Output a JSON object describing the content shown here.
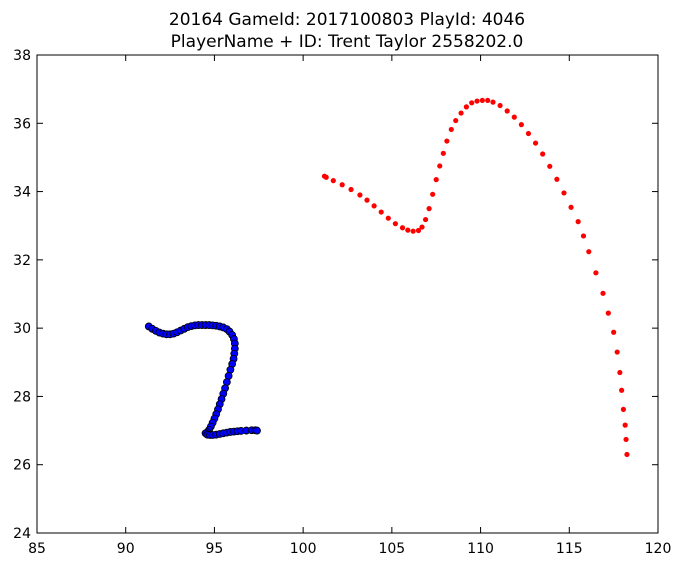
{
  "chart_data": {
    "type": "scatter",
    "title_line1": "20164 GameId: 2017100803 PlayId: 4046",
    "title_line2": "PlayerName + ID: Trent Taylor 2558202.0",
    "xlabel": "",
    "ylabel": "",
    "xlim": [
      85,
      120
    ],
    "ylim": [
      24,
      38
    ],
    "x_ticks": [
      85,
      90,
      95,
      100,
      105,
      110,
      115,
      120
    ],
    "y_ticks": [
      24,
      26,
      28,
      30,
      32,
      34,
      36,
      38
    ],
    "grid": false,
    "series": [
      {
        "color": "#0000ff",
        "marker": "circle-outlined",
        "points": [
          [
            91.3,
            30.05
          ],
          [
            91.5,
            29.98
          ],
          [
            91.7,
            29.92
          ],
          [
            91.9,
            29.87
          ],
          [
            92.1,
            29.84
          ],
          [
            92.3,
            29.82
          ],
          [
            92.5,
            29.82
          ],
          [
            92.7,
            29.84
          ],
          [
            92.9,
            29.88
          ],
          [
            93.1,
            29.93
          ],
          [
            93.3,
            29.98
          ],
          [
            93.5,
            30.03
          ],
          [
            93.7,
            30.06
          ],
          [
            93.9,
            30.08
          ],
          [
            94.1,
            30.09
          ],
          [
            94.3,
            30.09
          ],
          [
            94.5,
            30.09
          ],
          [
            94.7,
            30.09
          ],
          [
            94.9,
            30.08
          ],
          [
            95.1,
            30.07
          ],
          [
            95.3,
            30.05
          ],
          [
            95.5,
            30.02
          ],
          [
            95.7,
            29.97
          ],
          [
            95.85,
            29.9
          ],
          [
            96.0,
            29.8
          ],
          [
            96.1,
            29.68
          ],
          [
            96.15,
            29.55
          ],
          [
            96.15,
            29.4
          ],
          [
            96.12,
            29.25
          ],
          [
            96.08,
            29.1
          ],
          [
            96.0,
            28.95
          ],
          [
            95.9,
            28.78
          ],
          [
            95.8,
            28.6
          ],
          [
            95.7,
            28.42
          ],
          [
            95.6,
            28.24
          ],
          [
            95.5,
            28.08
          ],
          [
            95.4,
            27.92
          ],
          [
            95.3,
            27.77
          ],
          [
            95.2,
            27.62
          ],
          [
            95.1,
            27.48
          ],
          [
            95.0,
            27.35
          ],
          [
            94.9,
            27.23
          ],
          [
            94.8,
            27.12
          ],
          [
            94.7,
            27.02
          ],
          [
            94.6,
            26.95
          ],
          [
            94.5,
            26.92
          ],
          [
            94.6,
            26.88
          ],
          [
            94.75,
            26.87
          ],
          [
            94.9,
            26.87
          ],
          [
            95.1,
            26.88
          ],
          [
            95.3,
            26.9
          ],
          [
            95.5,
            26.92
          ],
          [
            95.7,
            26.94
          ],
          [
            95.9,
            26.96
          ],
          [
            96.1,
            26.97
          ],
          [
            96.3,
            26.98
          ],
          [
            96.5,
            26.99
          ],
          [
            96.8,
            27.0
          ],
          [
            97.1,
            27.01
          ],
          [
            97.3,
            27.01
          ],
          [
            97.4,
            27.0
          ]
        ]
      },
      {
        "color": "#ff0000",
        "marker": "dot",
        "points": [
          [
            101.2,
            34.45
          ],
          [
            101.3,
            34.42
          ],
          [
            101.7,
            34.32
          ],
          [
            102.2,
            34.2
          ],
          [
            102.7,
            34.06
          ],
          [
            103.2,
            33.9
          ],
          [
            103.6,
            33.75
          ],
          [
            104.0,
            33.58
          ],
          [
            104.4,
            33.4
          ],
          [
            104.8,
            33.22
          ],
          [
            105.2,
            33.06
          ],
          [
            105.6,
            32.94
          ],
          [
            105.9,
            32.87
          ],
          [
            106.2,
            32.84
          ],
          [
            106.5,
            32.86
          ],
          [
            106.7,
            32.96
          ],
          [
            106.9,
            33.18
          ],
          [
            107.1,
            33.5
          ],
          [
            107.3,
            33.92
          ],
          [
            107.5,
            34.35
          ],
          [
            107.7,
            34.75
          ],
          [
            107.9,
            35.12
          ],
          [
            108.1,
            35.48
          ],
          [
            108.35,
            35.82
          ],
          [
            108.6,
            36.08
          ],
          [
            108.9,
            36.3
          ],
          [
            109.2,
            36.48
          ],
          [
            109.5,
            36.6
          ],
          [
            109.8,
            36.65
          ],
          [
            110.1,
            36.67
          ],
          [
            110.4,
            36.67
          ],
          [
            110.7,
            36.62
          ],
          [
            111.1,
            36.52
          ],
          [
            111.5,
            36.36
          ],
          [
            111.9,
            36.18
          ],
          [
            112.3,
            35.96
          ],
          [
            112.7,
            35.7
          ],
          [
            113.1,
            35.42
          ],
          [
            113.5,
            35.1
          ],
          [
            113.9,
            34.74
          ],
          [
            114.3,
            34.36
          ],
          [
            114.7,
            33.96
          ],
          [
            115.1,
            33.54
          ],
          [
            115.5,
            33.12
          ],
          [
            115.8,
            32.7
          ],
          [
            116.1,
            32.24
          ],
          [
            116.5,
            31.62
          ],
          [
            116.9,
            31.02
          ],
          [
            117.2,
            30.44
          ],
          [
            117.5,
            29.88
          ],
          [
            117.7,
            29.3
          ],
          [
            117.85,
            28.7
          ],
          [
            117.95,
            28.18
          ],
          [
            118.05,
            27.62
          ],
          [
            118.15,
            27.16
          ],
          [
            118.2,
            26.74
          ],
          [
            118.25,
            26.3
          ]
        ]
      }
    ]
  }
}
